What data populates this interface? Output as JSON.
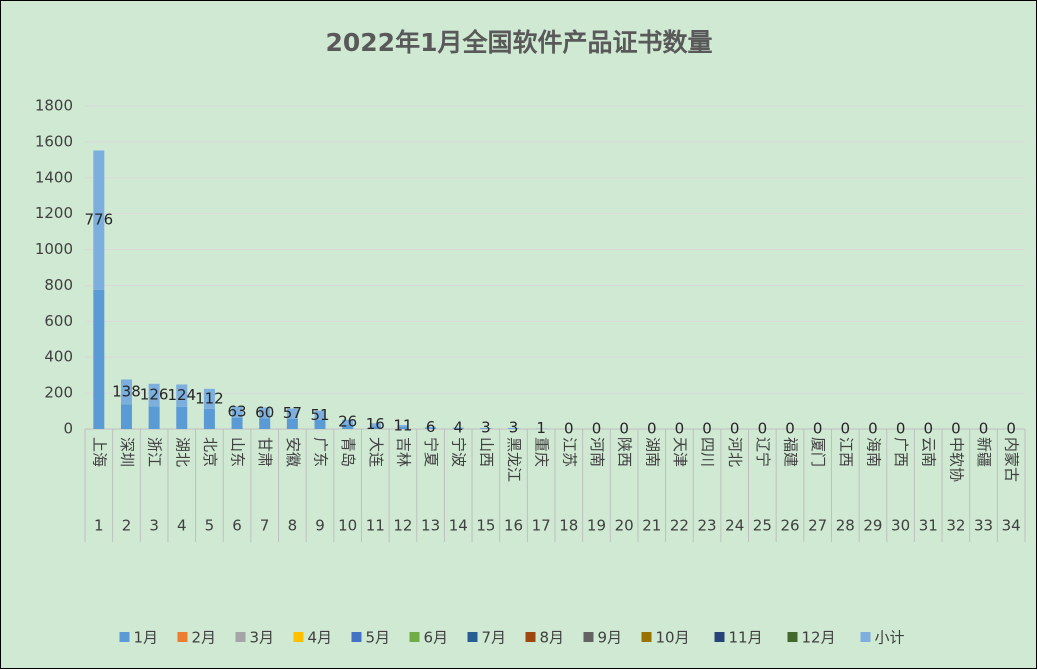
{
  "chart_data": {
    "type": "bar",
    "stacked": true,
    "title": "2022年1月全国软件产品证书数量",
    "categories": [
      "上海",
      "深圳",
      "浙江",
      "湖北",
      "北京",
      "山东",
      "甘肃",
      "安徽",
      "广东",
      "青岛",
      "大连",
      "吉林",
      "宁夏",
      "宁波",
      "山西",
      "黑龙江",
      "重庆",
      "江苏",
      "河南",
      "陕西",
      "湖南",
      "天津",
      "四川",
      "河北",
      "辽宁",
      "福建",
      "厦门",
      "江西",
      "海南",
      "广西",
      "云南",
      "中软协",
      "新疆",
      "内蒙古"
    ],
    "category_numbers": [
      1,
      2,
      3,
      4,
      5,
      6,
      7,
      8,
      9,
      10,
      11,
      12,
      13,
      14,
      15,
      16,
      17,
      18,
      19,
      20,
      21,
      22,
      23,
      24,
      25,
      26,
      27,
      28,
      29,
      30,
      31,
      32,
      33,
      34
    ],
    "series": [
      {
        "name": "1月",
        "color": "#5b9bd5",
        "values": [
          776,
          138,
          126,
          124,
          112,
          63,
          60,
          57,
          51,
          26,
          16,
          11,
          6,
          4,
          3,
          3,
          1,
          0,
          0,
          0,
          0,
          0,
          0,
          0,
          0,
          0,
          0,
          0,
          0,
          0,
          0,
          0,
          0,
          0
        ]
      },
      {
        "name": "2月",
        "color": "#ed7d31",
        "values": [
          0,
          0,
          0,
          0,
          0,
          0,
          0,
          0,
          0,
          0,
          0,
          0,
          0,
          0,
          0,
          0,
          0,
          0,
          0,
          0,
          0,
          0,
          0,
          0,
          0,
          0,
          0,
          0,
          0,
          0,
          0,
          0,
          0,
          0
        ]
      },
      {
        "name": "3月",
        "color": "#a5a5a5",
        "values": [
          0,
          0,
          0,
          0,
          0,
          0,
          0,
          0,
          0,
          0,
          0,
          0,
          0,
          0,
          0,
          0,
          0,
          0,
          0,
          0,
          0,
          0,
          0,
          0,
          0,
          0,
          0,
          0,
          0,
          0,
          0,
          0,
          0,
          0
        ]
      },
      {
        "name": "4月",
        "color": "#ffc000",
        "values": [
          0,
          0,
          0,
          0,
          0,
          0,
          0,
          0,
          0,
          0,
          0,
          0,
          0,
          0,
          0,
          0,
          0,
          0,
          0,
          0,
          0,
          0,
          0,
          0,
          0,
          0,
          0,
          0,
          0,
          0,
          0,
          0,
          0,
          0
        ]
      },
      {
        "name": "5月",
        "color": "#4472c4",
        "values": [
          0,
          0,
          0,
          0,
          0,
          0,
          0,
          0,
          0,
          0,
          0,
          0,
          0,
          0,
          0,
          0,
          0,
          0,
          0,
          0,
          0,
          0,
          0,
          0,
          0,
          0,
          0,
          0,
          0,
          0,
          0,
          0,
          0,
          0
        ]
      },
      {
        "name": "6月",
        "color": "#70ad47",
        "values": [
          0,
          0,
          0,
          0,
          0,
          0,
          0,
          0,
          0,
          0,
          0,
          0,
          0,
          0,
          0,
          0,
          0,
          0,
          0,
          0,
          0,
          0,
          0,
          0,
          0,
          0,
          0,
          0,
          0,
          0,
          0,
          0,
          0,
          0
        ]
      },
      {
        "name": "7月",
        "color": "#255e91",
        "values": [
          0,
          0,
          0,
          0,
          0,
          0,
          0,
          0,
          0,
          0,
          0,
          0,
          0,
          0,
          0,
          0,
          0,
          0,
          0,
          0,
          0,
          0,
          0,
          0,
          0,
          0,
          0,
          0,
          0,
          0,
          0,
          0,
          0,
          0
        ]
      },
      {
        "name": "8月",
        "color": "#9e480e",
        "values": [
          0,
          0,
          0,
          0,
          0,
          0,
          0,
          0,
          0,
          0,
          0,
          0,
          0,
          0,
          0,
          0,
          0,
          0,
          0,
          0,
          0,
          0,
          0,
          0,
          0,
          0,
          0,
          0,
          0,
          0,
          0,
          0,
          0,
          0
        ]
      },
      {
        "name": "9月",
        "color": "#636363",
        "values": [
          0,
          0,
          0,
          0,
          0,
          0,
          0,
          0,
          0,
          0,
          0,
          0,
          0,
          0,
          0,
          0,
          0,
          0,
          0,
          0,
          0,
          0,
          0,
          0,
          0,
          0,
          0,
          0,
          0,
          0,
          0,
          0,
          0,
          0
        ]
      },
      {
        "name": "10月",
        "color": "#997300",
        "values": [
          0,
          0,
          0,
          0,
          0,
          0,
          0,
          0,
          0,
          0,
          0,
          0,
          0,
          0,
          0,
          0,
          0,
          0,
          0,
          0,
          0,
          0,
          0,
          0,
          0,
          0,
          0,
          0,
          0,
          0,
          0,
          0,
          0,
          0
        ]
      },
      {
        "name": "11月",
        "color": "#264478",
        "values": [
          0,
          0,
          0,
          0,
          0,
          0,
          0,
          0,
          0,
          0,
          0,
          0,
          0,
          0,
          0,
          0,
          0,
          0,
          0,
          0,
          0,
          0,
          0,
          0,
          0,
          0,
          0,
          0,
          0,
          0,
          0,
          0,
          0,
          0
        ]
      },
      {
        "name": "12月",
        "color": "#43682b",
        "values": [
          0,
          0,
          0,
          0,
          0,
          0,
          0,
          0,
          0,
          0,
          0,
          0,
          0,
          0,
          0,
          0,
          0,
          0,
          0,
          0,
          0,
          0,
          0,
          0,
          0,
          0,
          0,
          0,
          0,
          0,
          0,
          0,
          0,
          0
        ]
      },
      {
        "name": "小计",
        "color": "#7cafdd",
        "data_labels": true,
        "values": [
          776,
          138,
          126,
          124,
          112,
          63,
          60,
          57,
          51,
          26,
          16,
          11,
          6,
          4,
          3,
          3,
          1,
          0,
          0,
          0,
          0,
          0,
          0,
          0,
          0,
          0,
          0,
          0,
          0,
          0,
          0,
          0,
          0,
          0
        ]
      }
    ],
    "ylim": [
      0,
      1800
    ],
    "yticks": [
      0,
      200,
      400,
      600,
      800,
      1000,
      1200,
      1400,
      1600,
      1800
    ],
    "grid": true,
    "legend": "bottom"
  }
}
